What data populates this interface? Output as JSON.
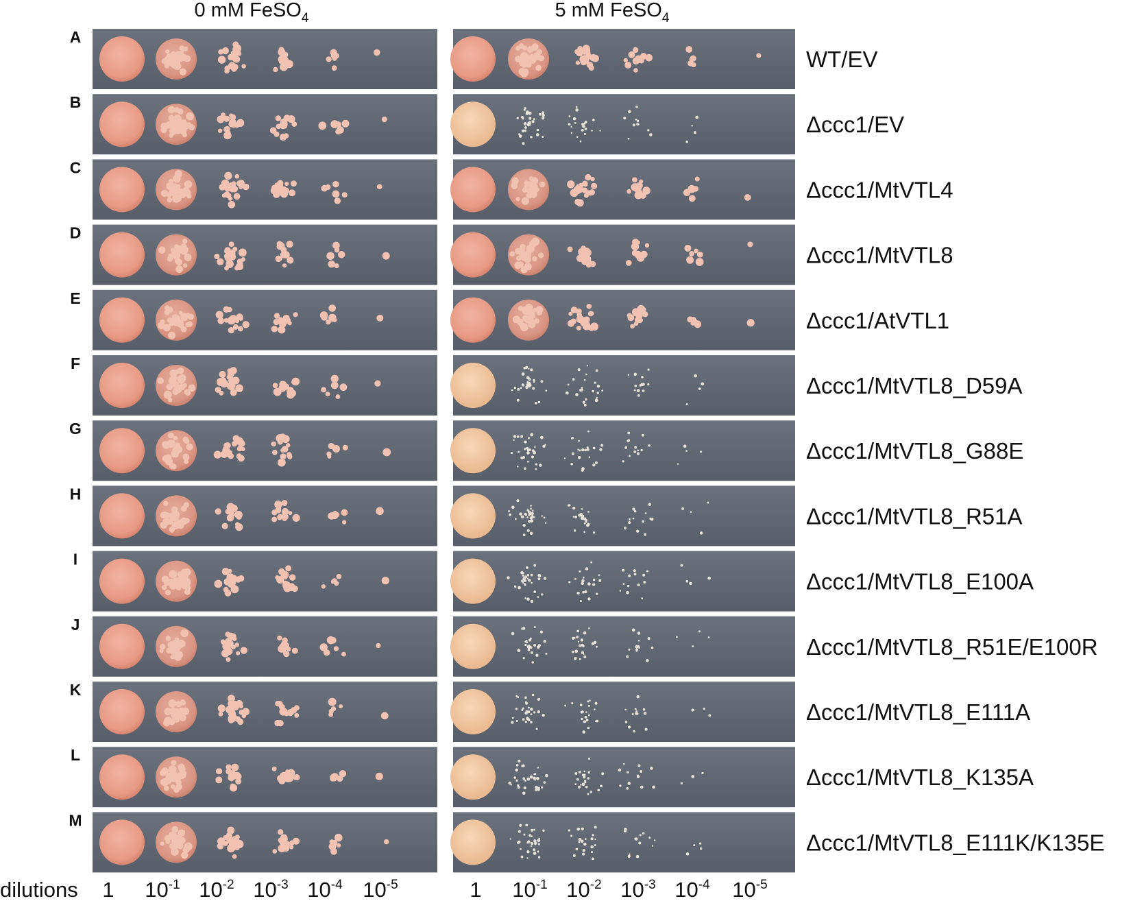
{
  "headers": [
    {
      "text": "0 mM FeSO",
      "sub": "4"
    },
    {
      "text": "5 mM FeSO",
      "sub": "4"
    }
  ],
  "rows": [
    {
      "letter": "A",
      "label": "WT/EV"
    },
    {
      "letter": "B",
      "label": "Δccc1/EV"
    },
    {
      "letter": "C",
      "label": "Δccc1/MtVTL4"
    },
    {
      "letter": "D",
      "label": "Δccc1/MtVTL8"
    },
    {
      "letter": "E",
      "label": "Δccc1/AtVTL1"
    },
    {
      "letter": "F",
      "label": "Δccc1/MtVTL8_D59A"
    },
    {
      "letter": "G",
      "label": "Δccc1/MtVTL8_G88E"
    },
    {
      "letter": "H",
      "label": "Δccc1/MtVTL8_R51A"
    },
    {
      "letter": "I",
      "label": "Δccc1/MtVTL8_E100A"
    },
    {
      "letter": "J",
      "label": "Δccc1/MtVTL8_R51E/E100R"
    },
    {
      "letter": "K",
      "label": "Δccc1/MtVTL8_E111A"
    },
    {
      "letter": "L",
      "label": "Δccc1/MtVTL8_K135A"
    },
    {
      "letter": "M",
      "label": "Δccc1/MtVTL8_E111K/K135E"
    }
  ],
  "dilutions": {
    "label": "dilutions",
    "steps": [
      {
        "base": "1"
      },
      {
        "base": "10",
        "exp": "-1"
      },
      {
        "base": "10",
        "exp": "-2"
      },
      {
        "base": "10",
        "exp": "-3"
      },
      {
        "base": "10",
        "exp": "-4"
      },
      {
        "base": "10",
        "exp": "-5"
      }
    ]
  }
}
